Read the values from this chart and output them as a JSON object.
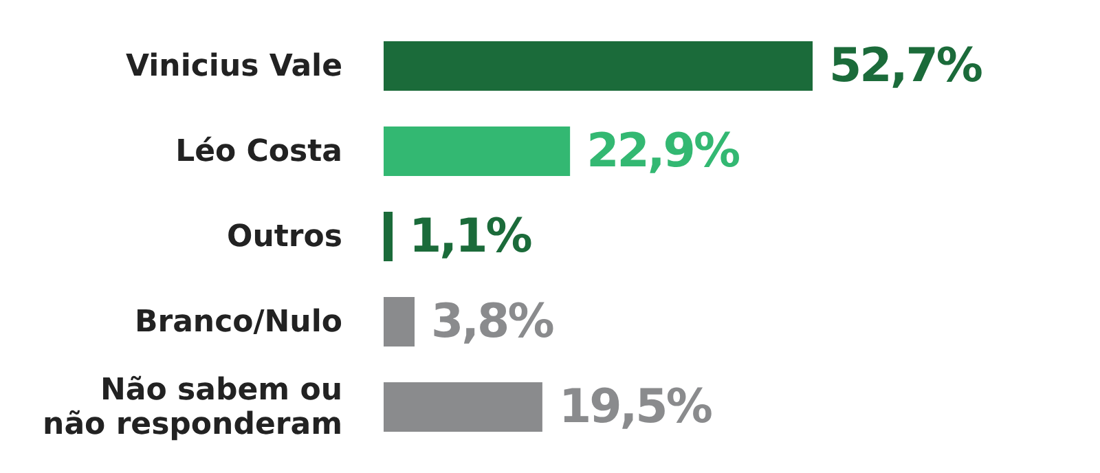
{
  "chart_data": {
    "type": "bar",
    "orientation": "horizontal",
    "categories": [
      "Vinicius Vale",
      "Léo Costa",
      "Outros",
      "Branco/Nulo",
      "Não sabem ou não responderam"
    ],
    "values": [
      52.7,
      22.9,
      1.1,
      3.8,
      19.5
    ],
    "colors": [
      "#1b6b3a",
      "#33b872",
      "#1b6b3a",
      "#8a8b8d",
      "#8a8b8d"
    ],
    "value_labels": [
      "52,7%",
      "22,9%",
      "1,1%",
      "3,8%",
      "19,5%"
    ],
    "grid": false,
    "legend": false
  }
}
